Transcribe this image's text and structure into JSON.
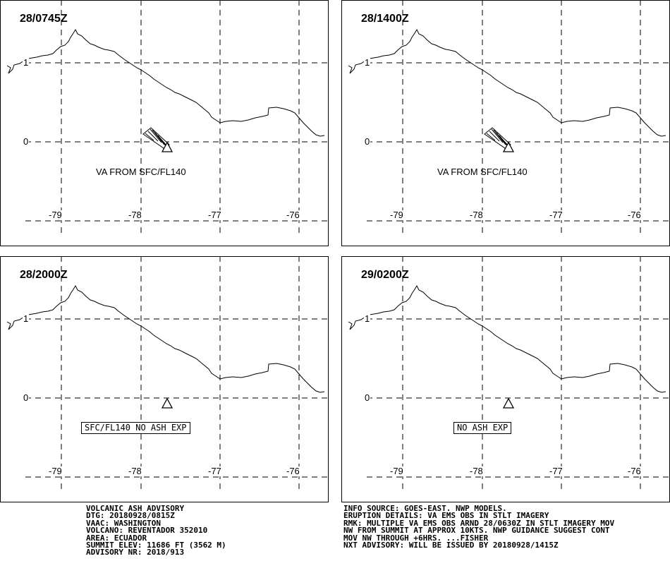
{
  "panels": [
    {
      "time": "28/0745Z",
      "plume": true,
      "label": "VA FROM SFC/FL140",
      "boxed": false
    },
    {
      "time": "28/1400Z",
      "plume": true,
      "label": "VA FROM SFC/FL140",
      "boxed": false
    },
    {
      "time": "28/2000Z",
      "plume": false,
      "label": "SFC/FL140 NO ASH EXP",
      "boxed": true
    },
    {
      "time": "29/0200Z",
      "plume": false,
      "label": "NO ASH EXP",
      "boxed": true
    }
  ],
  "axes": {
    "lat_labels": [
      "1",
      "0"
    ],
    "lon_labels": [
      "-79",
      "-78",
      "-77",
      "-76"
    ]
  },
  "volcano_icon": "volcano-triangle-icon",
  "advisory_left": [
    "VOLCANIC ASH ADVISORY",
    "DTG: 20180928/0815Z",
    "VAAC: WASHINGTON",
    "VOLCANO: REVENTADOR 352010",
    "AREA: ECUADOR",
    "SUMMIT ELEV: 11686 FT (3562 M)",
    "ADVISORY NR: 2018/913"
  ],
  "advisory_right": [
    "INFO SOURCE: GOES-EAST. NWP MODELS.",
    "ERUPTION DETAILS: VA EMS OBS IN STLT IMAGERY",
    "RMK: MULTIPLE VA EMS OBS ARND 28/0630Z IN STLT IMAGERY MOV",
    "NW FROM SUMMIT AT APPROX 10KTS. NWP GUIDANCE SUGGEST CONT",
    "MOV NW THROUGH +6HRS. ...FISHER",
    "NXT ADVISORY: WILL BE ISSUED BY 20180928/1415Z"
  ]
}
